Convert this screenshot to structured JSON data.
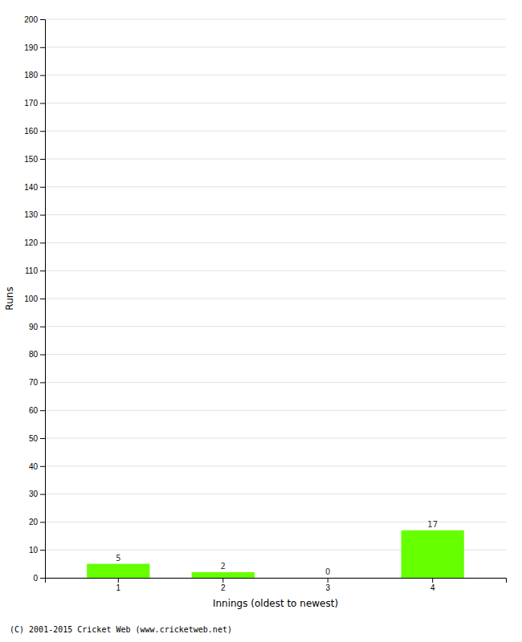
{
  "chart_data": {
    "type": "bar",
    "categories": [
      "1",
      "2",
      "3",
      "4"
    ],
    "values": [
      5,
      2,
      0,
      17
    ],
    "color": "#66ff00",
    "xlabel": "Innings (oldest to newest)",
    "ylabel": "Runs",
    "ylim": [
      0,
      200
    ],
    "yticks": [
      0,
      10,
      20,
      30,
      40,
      50,
      60,
      70,
      80,
      90,
      100,
      110,
      120,
      130,
      140,
      150,
      160,
      170,
      180,
      190,
      200
    ],
    "grid": true,
    "data_labels": true,
    "annotations": [
      "(C) 2001-2015 Cricket Web (www.cricketweb.net)"
    ]
  }
}
